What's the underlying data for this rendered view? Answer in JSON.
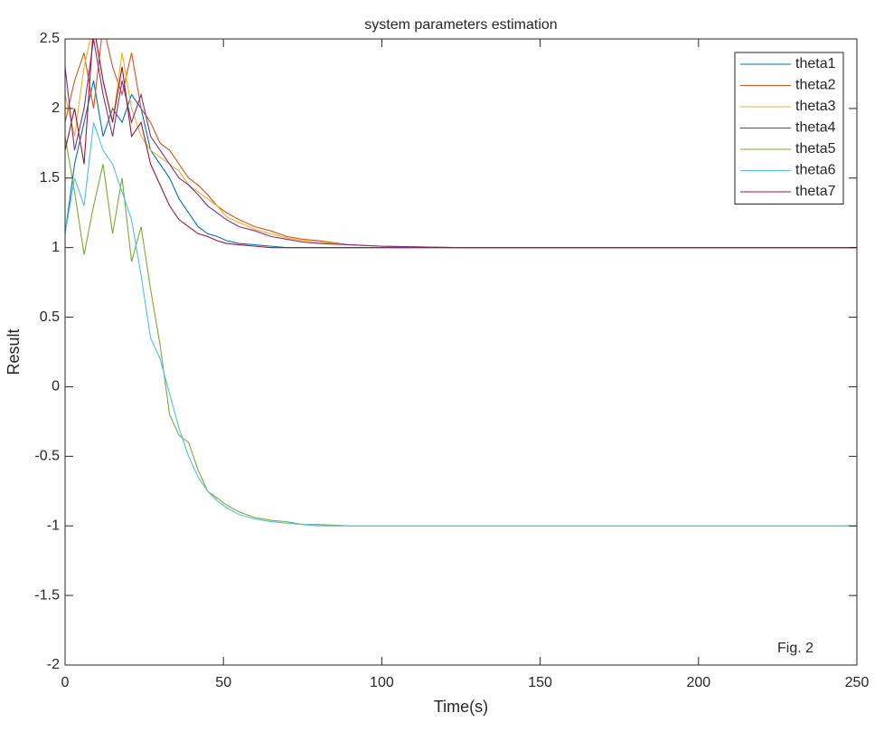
{
  "chart_data": {
    "type": "line",
    "title": "system parameters estimation",
    "x_label": "Time(s)",
    "y_label": "Result",
    "annotation": "Fig. 2",
    "x": [
      0,
      3,
      6,
      9,
      12,
      15,
      18,
      21,
      24,
      27,
      30,
      33,
      36,
      39,
      42,
      45,
      48,
      51,
      55,
      60,
      65,
      70,
      75,
      80,
      90,
      100,
      125,
      150,
      200,
      250
    ],
    "series": [
      {
        "name": "theta1",
        "color": "#0072BD",
        "values": [
          1.1,
          1.6,
          1.9,
          2.2,
          1.8,
          2.0,
          1.9,
          2.1,
          2.0,
          1.7,
          1.6,
          1.5,
          1.35,
          1.25,
          1.15,
          1.1,
          1.08,
          1.05,
          1.03,
          1.02,
          1.01,
          1.0,
          1.0,
          1.0,
          1.0,
          1.0,
          1.0,
          1.0,
          1.0,
          1.0
        ]
      },
      {
        "name": "theta2",
        "color": "#D95319",
        "values": [
          1.9,
          2.2,
          2.4,
          2.0,
          2.6,
          2.3,
          2.1,
          2.4,
          2.0,
          1.9,
          1.75,
          1.7,
          1.6,
          1.5,
          1.45,
          1.38,
          1.3,
          1.25,
          1.2,
          1.15,
          1.12,
          1.08,
          1.06,
          1.05,
          1.02,
          1.01,
          1.0,
          1.0,
          1.0,
          1.0
        ]
      },
      {
        "name": "theta3",
        "color": "#EDB120",
        "values": [
          2.1,
          1.8,
          2.3,
          2.6,
          2.2,
          1.9,
          2.4,
          2.0,
          1.8,
          1.7,
          1.65,
          1.6,
          1.55,
          1.45,
          1.4,
          1.35,
          1.3,
          1.22,
          1.18,
          1.13,
          1.1,
          1.07,
          1.05,
          1.04,
          1.02,
          1.01,
          1.0,
          1.0,
          1.0,
          1.0
        ]
      },
      {
        "name": "theta4",
        "color": "#7E2F8E",
        "values": [
          2.3,
          1.7,
          2.0,
          2.5,
          2.1,
          1.8,
          2.2,
          1.9,
          2.1,
          1.8,
          1.7,
          1.6,
          1.5,
          1.45,
          1.38,
          1.3,
          1.25,
          1.2,
          1.15,
          1.12,
          1.08,
          1.06,
          1.04,
          1.03,
          1.02,
          1.01,
          1.0,
          1.0,
          1.0,
          1.0
        ]
      },
      {
        "name": "theta5",
        "color": "#77AC30",
        "values": [
          1.8,
          1.4,
          0.95,
          1.3,
          1.6,
          1.1,
          1.5,
          0.9,
          1.15,
          0.7,
          0.3,
          -0.2,
          -0.35,
          -0.4,
          -0.6,
          -0.75,
          -0.8,
          -0.85,
          -0.9,
          -0.94,
          -0.96,
          -0.97,
          -0.99,
          -0.99,
          -1.0,
          -1.0,
          -1.0,
          -1.0,
          -1.0,
          -1.0
        ]
      },
      {
        "name": "theta6",
        "color": "#4DBEEE",
        "values": [
          1.1,
          1.5,
          1.3,
          1.9,
          1.7,
          1.6,
          1.4,
          1.2,
          0.8,
          0.35,
          0.2,
          -0.05,
          -0.3,
          -0.5,
          -0.65,
          -0.75,
          -0.82,
          -0.87,
          -0.92,
          -0.95,
          -0.97,
          -0.98,
          -0.99,
          -1.0,
          -1.0,
          -1.0,
          -1.0,
          -1.0,
          -1.0,
          -1.0
        ]
      },
      {
        "name": "theta7",
        "color": "#A2142F",
        "values": [
          1.7,
          2.0,
          1.6,
          2.6,
          2.2,
          1.9,
          2.3,
          1.8,
          1.9,
          1.6,
          1.45,
          1.3,
          1.2,
          1.15,
          1.1,
          1.08,
          1.05,
          1.03,
          1.02,
          1.01,
          1.0,
          1.0,
          1.0,
          1.0,
          1.0,
          1.0,
          1.0,
          1.0,
          1.0,
          1.0
        ]
      }
    ],
    "xlim": [
      0,
      250
    ],
    "xticks": [
      0,
      50,
      100,
      150,
      200,
      250
    ],
    "ylim": [
      -2,
      2.5
    ],
    "yticks": [
      -2,
      -1.5,
      -1,
      -0.5,
      0,
      0.5,
      1,
      1.5,
      2,
      2.5
    ],
    "legend": "top-right",
    "grid": false
  }
}
